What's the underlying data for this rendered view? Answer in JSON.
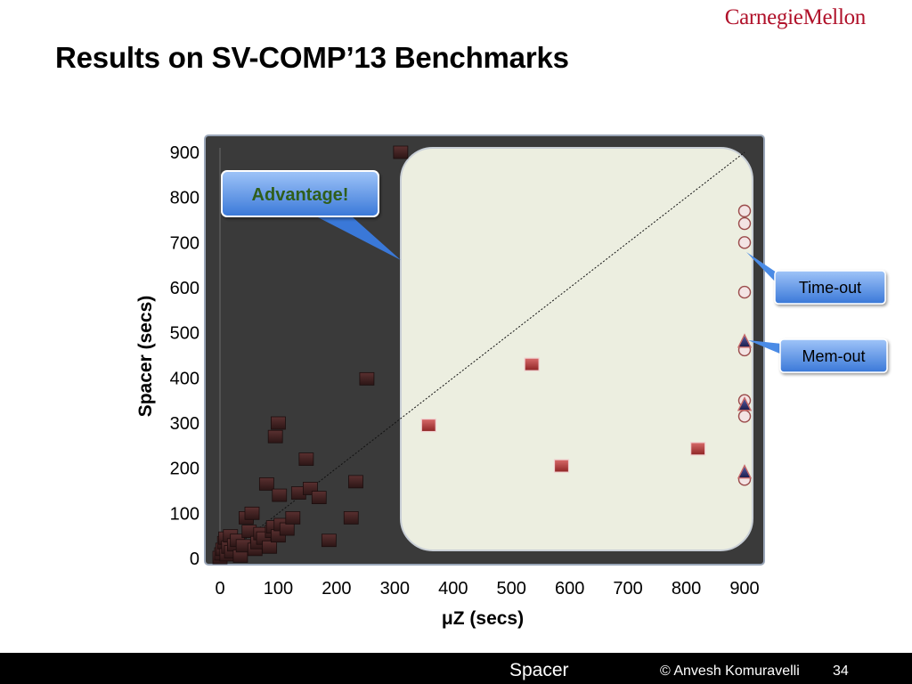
{
  "header": {
    "logo_text": "CarnegieMellon",
    "title": "Results on SV-COMP’13 Benchmarks"
  },
  "footer": {
    "section": "Spacer",
    "copyright": "© Anvesh Komuravelli",
    "page_number": "34"
  },
  "colors": {
    "plot_background": "#3a3a3a",
    "highlight_region": "#eceee0",
    "square_marker": "#b23a3a",
    "square_marker_dim": "#3e2020",
    "timeout_marker": "#f3e4e4",
    "memout_marker": "#2d2f66",
    "callout_blue": "#4a8be6"
  },
  "chart_data": {
    "type": "scatter",
    "xlabel": "μZ (secs)",
    "ylabel": "Spacer (secs)",
    "xlim": [
      0,
      900
    ],
    "ylim": [
      0,
      900
    ],
    "x_ticks": [
      "0",
      "100",
      "200",
      "300",
      "400",
      "500",
      "600",
      "700",
      "800",
      "900"
    ],
    "y_ticks": [
      "0",
      "100",
      "200",
      "300",
      "400",
      "500",
      "600",
      "700",
      "800",
      "900"
    ],
    "diagonal_line": true,
    "highlight_region": {
      "x_from": 320,
      "x_to": 900,
      "y_from": 0,
      "y_to": 900
    },
    "annotations": {
      "advantage": "Advantage!",
      "timeout": "Time-out",
      "memout": "Mem-out"
    },
    "series": [
      {
        "marker": "square",
        "points": [
          [
            0,
            2
          ],
          [
            3,
            10
          ],
          [
            5,
            20
          ],
          [
            8,
            35
          ],
          [
            10,
            45
          ],
          [
            12,
            8
          ],
          [
            15,
            25
          ],
          [
            18,
            50
          ],
          [
            20,
            15
          ],
          [
            25,
            30
          ],
          [
            30,
            40
          ],
          [
            35,
            5
          ],
          [
            40,
            28
          ],
          [
            45,
            90
          ],
          [
            50,
            60
          ],
          [
            55,
            100
          ],
          [
            60,
            20
          ],
          [
            65,
            35
          ],
          [
            70,
            55
          ],
          [
            75,
            45
          ],
          [
            80,
            165
          ],
          [
            85,
            25
          ],
          [
            90,
            60
          ],
          [
            92,
            70
          ],
          [
            95,
            270
          ],
          [
            100,
            300
          ],
          [
            100,
            50
          ],
          [
            102,
            140
          ],
          [
            105,
            75
          ],
          [
            115,
            65
          ],
          [
            125,
            90
          ],
          [
            135,
            145
          ],
          [
            148,
            220
          ],
          [
            155,
            155
          ],
          [
            170,
            135
          ],
          [
            187,
            40
          ],
          [
            225,
            90
          ],
          [
            233,
            170
          ],
          [
            252,
            398
          ],
          [
            310,
            900
          ],
          [
            358,
            295
          ],
          [
            535,
            430
          ],
          [
            586,
            205
          ],
          [
            820,
            243
          ]
        ]
      },
      {
        "marker": "circle-timeout",
        "points": [
          [
            900,
            770
          ],
          [
            900,
            742
          ],
          [
            900,
            700
          ],
          [
            900,
            590
          ],
          [
            900,
            462
          ],
          [
            900,
            350
          ],
          [
            900,
            315
          ],
          [
            900,
            175
          ]
        ]
      },
      {
        "marker": "triangle-memout",
        "points": [
          [
            900,
            480
          ],
          [
            900,
            340
          ],
          [
            900,
            190
          ]
        ]
      }
    ]
  }
}
